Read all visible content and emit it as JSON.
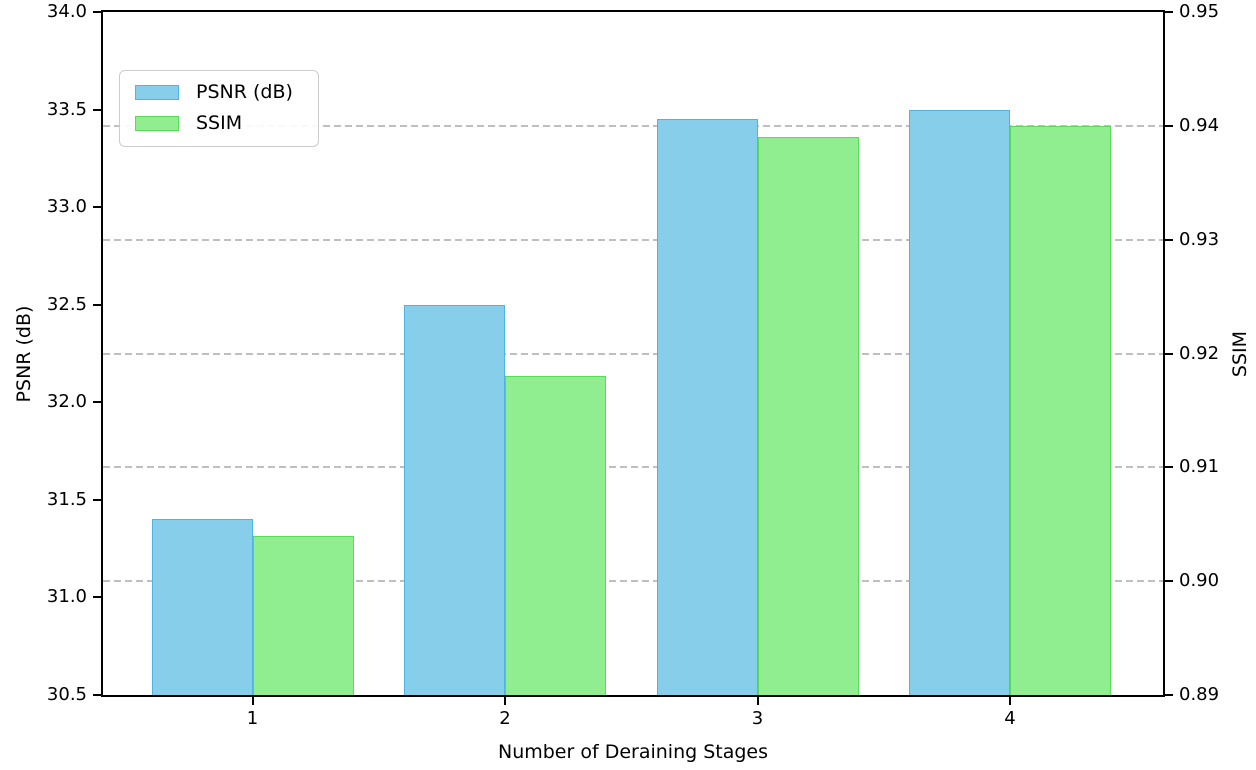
{
  "chart_data": {
    "type": "bar",
    "title": "",
    "categories": [
      "1",
      "2",
      "3",
      "4"
    ],
    "xlabel": "Number of Deraining Stages",
    "series": [
      {
        "name": "PSNR (dB)",
        "axis": "left",
        "fill_color": "#87CEEB",
        "edge_color": "#4FB4E2",
        "values": [
          31.4,
          32.5,
          33.45,
          33.5
        ]
      },
      {
        "name": "SSIM",
        "axis": "right",
        "fill_color": "#90EE90",
        "edge_color": "#58DB58",
        "values": [
          0.904,
          0.918,
          0.939,
          0.94
        ]
      }
    ],
    "left_axis": {
      "label": "PSNR (dB)",
      "min": 30.5,
      "max": 34.0,
      "ticks": [
        "30.5",
        "31.0",
        "31.5",
        "32.0",
        "32.5",
        "33.0",
        "33.5",
        "34.0"
      ]
    },
    "right_axis": {
      "label": "SSIM",
      "min": 0.89,
      "max": 0.95,
      "ticks": [
        "0.89",
        "0.90",
        "0.91",
        "0.92",
        "0.93",
        "0.94",
        "0.95"
      ]
    },
    "legend": {
      "position": "upper-left",
      "entries": [
        "PSNR (dB)",
        "SSIM"
      ]
    },
    "grid": {
      "visible": true,
      "axis": "right",
      "style": "dashed",
      "color": "#b4b4b4",
      "gridline_values": [
        0.9,
        0.91,
        0.92,
        0.93,
        0.94
      ]
    }
  }
}
